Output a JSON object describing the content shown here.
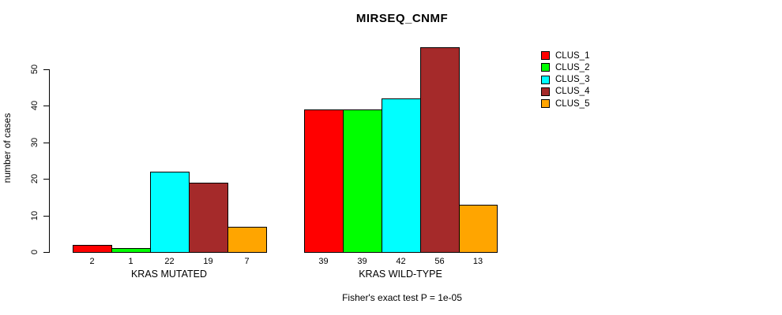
{
  "title": "MIRSEQ_CNMF",
  "chart_data": {
    "type": "bar",
    "title": "MIRSEQ_CNMF",
    "xlabel": "",
    "ylabel": "number of cases",
    "groups": [
      "KRAS MUTATED",
      "KRAS WILD-TYPE"
    ],
    "series": [
      {
        "name": "CLUS_1",
        "color": "#FF0000",
        "values": [
          2,
          39
        ]
      },
      {
        "name": "CLUS_2",
        "color": "#00FF00",
        "values": [
          1,
          39
        ]
      },
      {
        "name": "CLUS_3",
        "color": "#00FFFF",
        "values": [
          22,
          42
        ]
      },
      {
        "name": "CLUS_4",
        "color": "#A52A2A",
        "values": [
          19,
          56
        ]
      },
      {
        "name": "CLUS_5",
        "color": "#FFA500",
        "values": [
          7,
          13
        ]
      }
    ],
    "bar_labels": [
      [
        "2",
        "1",
        "22",
        "19",
        "7"
      ],
      [
        "39",
        "39",
        "42",
        "56",
        "13"
      ]
    ],
    "yticks": [
      0,
      10,
      20,
      30,
      40,
      50
    ],
    "ylim": [
      0,
      58
    ],
    "grid": false,
    "legend_position": "right-outside",
    "legend_entries": [
      "CLUS_1",
      "CLUS_2",
      "CLUS_3",
      "CLUS_4",
      "CLUS_5"
    ],
    "annotation": "Fisher's exact test P = 1e-05"
  }
}
